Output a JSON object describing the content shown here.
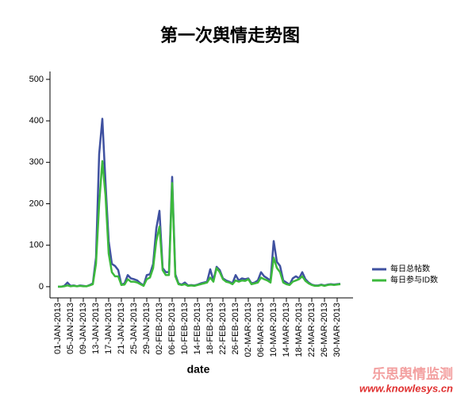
{
  "chart_data": {
    "type": "line",
    "title": "第一次舆情走势图",
    "x_label": "date",
    "categories": [
      "01-JAN-2013",
      null,
      null,
      null,
      "05-JAN-2013",
      null,
      null,
      null,
      "09-JAN-2013",
      null,
      null,
      null,
      "13-JAN-2013",
      null,
      null,
      null,
      "17-JAN-2013",
      null,
      null,
      null,
      "21-JAN-2013",
      null,
      null,
      null,
      "25-JAN-2013",
      null,
      null,
      null,
      "29-JAN-2013",
      null,
      null,
      null,
      "02-FEB-2013",
      null,
      null,
      null,
      "06-FEB-2013",
      null,
      null,
      null,
      "10-FEB-2013",
      null,
      null,
      null,
      "14-FEB-2013",
      null,
      null,
      null,
      "18-FEB-2013",
      null,
      null,
      null,
      "22-FEB-2013",
      null,
      null,
      null,
      "26-FEB-2013",
      null,
      null,
      null,
      "02-MAR-2013",
      null,
      null,
      null,
      "06-MAR-2013",
      null,
      null,
      null,
      "10-MAR-2013",
      null,
      null,
      null,
      "14-MAR-2013",
      null,
      null,
      null,
      "18-MAR-2013",
      null,
      null,
      null,
      "22-MAR-2013",
      null,
      null,
      null,
      "26-MAR-2013",
      null,
      null,
      null,
      "30-MAR-2013",
      null
    ],
    "series": [
      {
        "name": "每日总帖数",
        "color": "#3f51a0",
        "values": [
          0,
          0,
          2,
          10,
          2,
          3,
          1,
          3,
          2,
          1,
          4,
          8,
          70,
          320,
          405,
          250,
          110,
          55,
          50,
          40,
          5,
          8,
          28,
          20,
          18,
          15,
          8,
          3,
          28,
          30,
          55,
          140,
          183,
          45,
          35,
          35,
          265,
          30,
          8,
          5,
          10,
          3,
          4,
          3,
          5,
          8,
          10,
          12,
          42,
          15,
          48,
          40,
          20,
          15,
          12,
          8,
          28,
          15,
          20,
          18,
          20,
          8,
          10,
          15,
          35,
          25,
          20,
          15,
          110,
          60,
          50,
          15,
          10,
          5,
          20,
          25,
          20,
          35,
          18,
          10,
          5,
          3,
          3,
          5,
          3,
          5,
          6,
          5,
          6,
          7
        ]
      },
      {
        "name": "每日参与ID数",
        "color": "#3cb93c",
        "values": [
          0,
          0,
          1,
          3,
          1,
          2,
          1,
          2,
          1,
          1,
          3,
          6,
          55,
          200,
          303,
          220,
          80,
          35,
          25,
          25,
          4,
          5,
          18,
          12,
          12,
          10,
          6,
          2,
          18,
          22,
          45,
          110,
          145,
          40,
          28,
          28,
          250,
          25,
          6,
          4,
          6,
          2,
          3,
          2,
          4,
          6,
          8,
          10,
          22,
          12,
          45,
          35,
          18,
          12,
          10,
          6,
          15,
          12,
          15,
          14,
          18,
          6,
          8,
          10,
          22,
          18,
          15,
          10,
          70,
          45,
          35,
          10,
          6,
          4,
          12,
          15,
          18,
          25,
          14,
          8,
          4,
          2,
          2,
          4,
          2,
          4,
          5,
          4,
          5,
          6
        ]
      }
    ],
    "ylim": [
      -27,
      519
    ],
    "yticks": [
      0,
      100,
      200,
      300,
      400,
      500
    ],
    "legend": "right"
  },
  "watermark": [
    "乐思舆情监测",
    "www.knowlesys.cn"
  ]
}
